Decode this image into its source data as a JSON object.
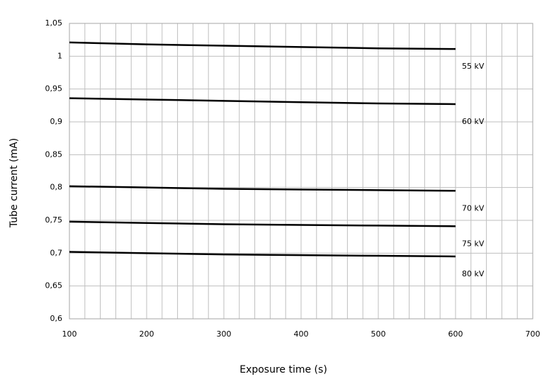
{
  "chart_data": {
    "type": "line",
    "x_label": "Exposure time (s)",
    "y_label": "Tube current (mA)",
    "x": [
      100,
      200,
      300,
      400,
      500,
      600
    ],
    "series": [
      {
        "name": "55 kV",
        "color": "#000000",
        "values": [
          1.021,
          1.018,
          1.016,
          1.014,
          1.012,
          1.011
        ]
      },
      {
        "name": "60 kV",
        "color": "#000000",
        "values": [
          0.936,
          0.934,
          0.932,
          0.93,
          0.928,
          0.927
        ]
      },
      {
        "name": "70 kV",
        "color": "#000000",
        "values": [
          0.802,
          0.8,
          0.798,
          0.797,
          0.796,
          0.795
        ]
      },
      {
        "name": "75 kV",
        "color": "#000000",
        "values": [
          0.748,
          0.746,
          0.744,
          0.743,
          0.742,
          0.741
        ]
      },
      {
        "name": "80 kV",
        "color": "#000000",
        "values": [
          0.702,
          0.7,
          0.698,
          0.697,
          0.696,
          0.695
        ]
      }
    ],
    "xlim": [
      100,
      700
    ],
    "xticks": [
      100,
      200,
      300,
      400,
      500,
      600,
      700
    ],
    "ylim": [
      0.6,
      1.05
    ],
    "yticks": [
      {
        "value": 0.6,
        "label": "0,6"
      },
      {
        "value": 0.65,
        "label": "0,65"
      },
      {
        "value": 0.7,
        "label": "0,7"
      },
      {
        "value": 0.75,
        "label": "0,75"
      },
      {
        "value": 0.8,
        "label": "0,8"
      },
      {
        "value": 0.85,
        "label": "0,85"
      },
      {
        "value": 0.9,
        "label": "0,9"
      },
      {
        "value": 0.95,
        "label": "0,95"
      },
      1,
      {
        "value": 1.05,
        "label": "1,05"
      }
    ],
    "grid": true,
    "x_minor_divisions": 5
  }
}
